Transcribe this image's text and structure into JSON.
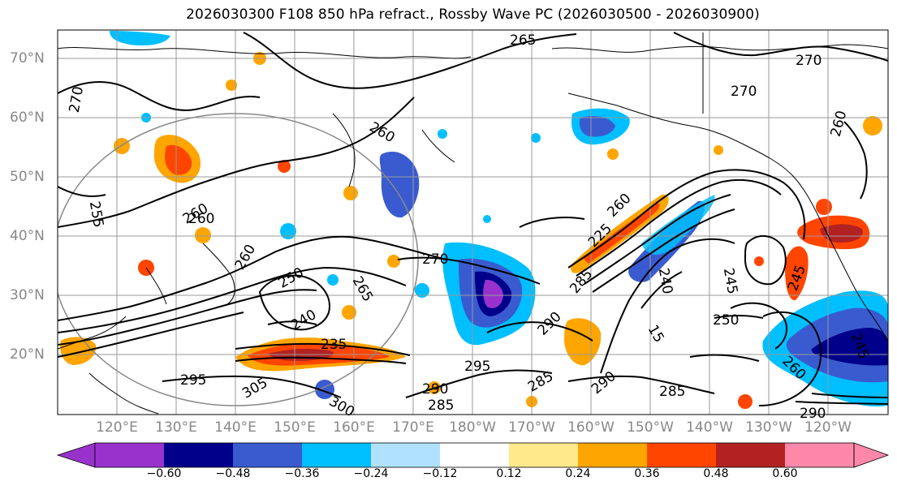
{
  "title": "2026030300 F108 850 hPa refract., Rossby Wave PC (2026030500 - 2026030900)",
  "lat_labels": [
    "70°N",
    "60°N",
    "50°N",
    "40°N",
    "30°N",
    "20°N"
  ],
  "lon_labels": [
    "120°E",
    "130°E",
    "140°E",
    "150°E",
    "160°E",
    "170°E",
    "180°W",
    "170°W",
    "160°W",
    "150°W",
    "140°W",
    "130°W",
    "120°W"
  ],
  "contour_labels": [
    "265",
    "270",
    "270",
    "270",
    "260",
    "260",
    "260",
    "260",
    "260",
    "260",
    "270",
    "255",
    "250",
    "240",
    "235",
    "265",
    "295",
    "305",
    "300",
    "290",
    "285",
    "295",
    "290",
    "285",
    "290",
    "285",
    "285",
    "250",
    "240",
    "245",
    "245",
    "260",
    "245",
    "15",
    "225",
    "290"
  ],
  "colorbar": {
    "ticks": [
      "−0.60",
      "−0.48",
      "−0.36",
      "−0.24",
      "−0.12",
      "0.12",
      "0.24",
      "0.36",
      "0.48",
      "0.60"
    ],
    "colors": [
      "#9932cc",
      "#00008b",
      "#3a5bcf",
      "#00bfff",
      "#b0e2ff",
      "#ffffff",
      "#ffe98a",
      "#ffa500",
      "#ff4500",
      "#b22222",
      "#ff88aa"
    ]
  },
  "colors": {
    "coastline": "#000000",
    "grid": "#999999",
    "contour": "#000000",
    "label": "#888888"
  }
}
